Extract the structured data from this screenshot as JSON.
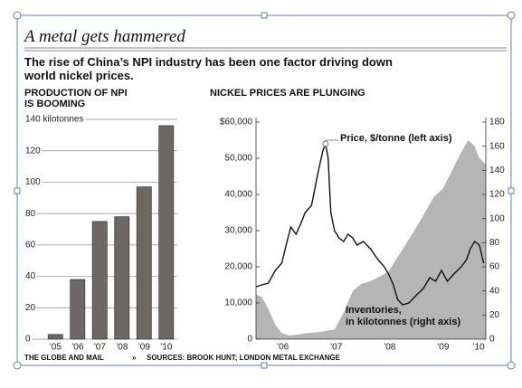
{
  "header": {
    "title": "A metal gets hammered",
    "subtitle": "The rise of China’s NPI industry has been one factor driving down\nworld nickel prices."
  },
  "footer": {
    "publisher": "THE GLOBE AND MAIL",
    "separator": "»",
    "sources": "SOURCES: BROOK HUNT; LONDON METAL EXCHANGE"
  },
  "chart_data": [
    {
      "type": "bar",
      "title": "PRODUCTION OF NPI\nIS BOOMING",
      "categories": [
        "’05",
        "’06",
        "’07",
        "’08",
        "’09",
        "’10"
      ],
      "values": [
        3,
        38,
        75,
        78,
        97,
        136
      ],
      "color": "#6d6865",
      "ylim": [
        0,
        140
      ],
      "yticks": [
        0,
        20,
        40,
        60,
        80,
        100,
        120,
        {
          "value": 140,
          "label": "140 kilotonnes"
        }
      ],
      "grid": true
    },
    {
      "type": "line",
      "title": "NICKEL PRICES ARE PLUNGING",
      "xlim": [
        2006.0,
        2010.3
      ],
      "xticks": [
        {
          "value": 2006.5,
          "label": "’06"
        },
        {
          "value": 2007.5,
          "label": "’07"
        },
        {
          "value": 2008.5,
          "label": "’08"
        },
        {
          "value": 2009.5,
          "label": "’09"
        },
        {
          "value": 2010.5,
          "label": "’10"
        }
      ],
      "ylim": [
        0,
        60000
      ],
      "yticks": [
        0,
        {
          "value": 10000,
          "label": "10,000"
        },
        {
          "value": 20000,
          "label": "20,000"
        },
        {
          "value": 30000,
          "label": "30,000"
        },
        {
          "value": 40000,
          "label": "40,000"
        },
        {
          "value": 50000,
          "label": "50,000"
        },
        {
          "value": 60000,
          "label": "$60,000"
        }
      ],
      "y2lim": [
        0,
        180
      ],
      "y2ticks": [
        0,
        20,
        40,
        60,
        80,
        100,
        120,
        140,
        160,
        180
      ],
      "grid": false,
      "series": [
        {
          "name": "Inventories,\nin kilotonnes (right axis)",
          "type": "area",
          "axis": "y2",
          "color": "#b5b5b5",
          "x": [
            2006.0,
            2006.11,
            2006.23,
            2006.36,
            2006.48,
            2006.62,
            2006.79,
            2006.96,
            2007.21,
            2007.47,
            2007.64,
            2007.81,
            2007.97,
            2008.14,
            2008.31,
            2008.48,
            2008.65,
            2008.82,
            2008.99,
            2009.16,
            2009.33,
            2009.5,
            2009.67,
            2009.84,
            2009.97,
            2010.09,
            2010.18,
            2010.3
          ],
          "values": [
            37,
            35,
            25,
            12,
            5,
            3,
            4,
            5,
            6,
            8,
            22,
            40,
            46,
            48,
            52,
            56,
            68,
            80,
            92,
            105,
            118,
            125,
            140,
            155,
            165,
            160,
            150,
            145
          ]
        },
        {
          "name": "Price, $/tonne (left axis)",
          "type": "line",
          "color": "#111111",
          "x": [
            2006.0,
            2006.11,
            2006.23,
            2006.36,
            2006.48,
            2006.58,
            2006.65,
            2006.75,
            2006.84,
            2006.92,
            2007.04,
            2007.16,
            2007.25,
            2007.3,
            2007.35,
            2007.4,
            2007.47,
            2007.55,
            2007.64,
            2007.72,
            2007.81,
            2007.89,
            2008.01,
            2008.14,
            2008.28,
            2008.4,
            2008.48,
            2008.57,
            2008.65,
            2008.74,
            2008.86,
            2008.99,
            2009.13,
            2009.25,
            2009.36,
            2009.47,
            2009.58,
            2009.7,
            2009.84,
            2009.94,
            2010.01,
            2010.09,
            2010.18,
            2010.26
          ],
          "values": [
            14500,
            15000,
            15500,
            19000,
            21000,
            27000,
            31000,
            29000,
            32000,
            35000,
            37000,
            46000,
            52000,
            54000,
            50000,
            35000,
            30000,
            28000,
            27000,
            29000,
            28000,
            26000,
            27000,
            25000,
            22000,
            20000,
            18000,
            15000,
            11000,
            9500,
            10000,
            12000,
            14000,
            17000,
            16000,
            19000,
            16000,
            18000,
            20000,
            22000,
            25000,
            27000,
            26000,
            21000
          ]
        }
      ]
    }
  ]
}
